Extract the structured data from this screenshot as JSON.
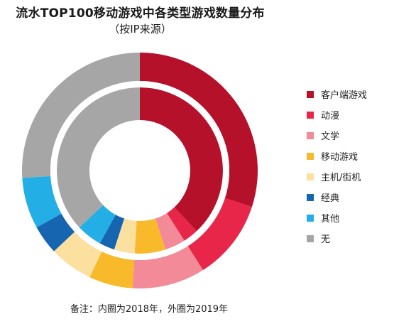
{
  "chart_data": {
    "type": "pie",
    "title": "流水TOP100移动游戏中各类型游戏数量分布",
    "subtitle": "（按IP来源）",
    "legend_position": "right",
    "categories": [
      "客户端游戏",
      "动漫",
      "文学",
      "移动游戏",
      "主机/街机",
      "经典",
      "其他",
      "无"
    ],
    "colors": [
      "#b5112b",
      "#e8264a",
      "#f28a97",
      "#f8b92b",
      "#fbe0a0",
      "#1565b0",
      "#23aee6",
      "#a6a6a6"
    ],
    "series": [
      {
        "name": "2018年",
        "ring": "inner",
        "values": [
          38,
          3,
          4,
          6,
          4,
          3,
          5,
          37
        ]
      },
      {
        "name": "2019年",
        "ring": "outer",
        "values": [
          30,
          11,
          10,
          6,
          6,
          4,
          7,
          26
        ]
      }
    ],
    "note": "备注：内圈为2018年，外圈为2019年"
  }
}
